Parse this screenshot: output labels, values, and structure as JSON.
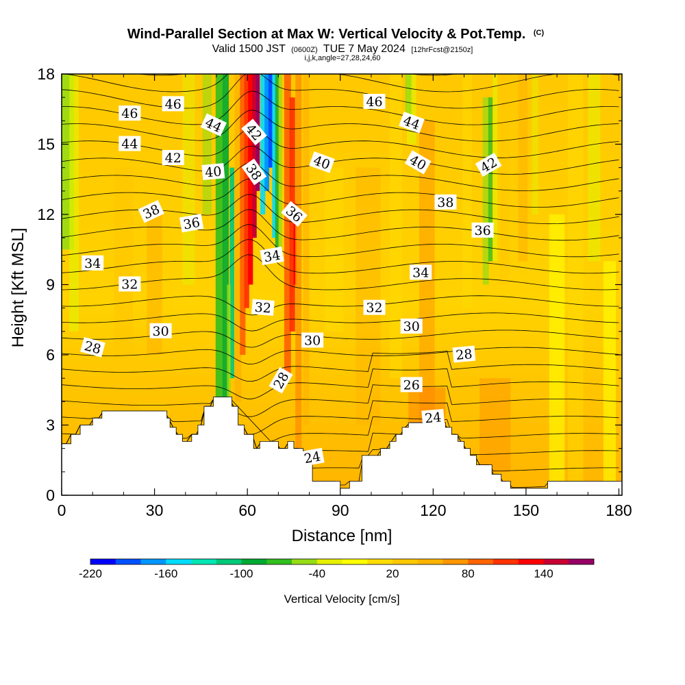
{
  "chart_data": {
    "type": "heatmap",
    "title": "Wind-Parallel Section at Max W: Vertical Velocity & Pot.Temp.",
    "title_mark": "(C)",
    "subtitle_main": "Valid 1500 JST",
    "subtitle_utc": "(0600Z)",
    "subtitle_date": "TUE 7 May 2024",
    "subtitle_fcst": "[12hrFcst@2150z]",
    "subtitle_params": "i,j,k,angle=27,28,24,60",
    "xlabel": "Distance [nm]",
    "ylabel": "Height [Kft MSL]",
    "xlim": [
      0,
      181
    ],
    "ylim": [
      0,
      18
    ],
    "x_ticks": [
      0,
      30,
      60,
      90,
      120,
      150,
      180
    ],
    "y_ticks": [
      0,
      3,
      6,
      9,
      12,
      15,
      18
    ],
    "x_tick_labels": [
      "0",
      "30",
      "60",
      "90",
      "120",
      "150",
      "180"
    ],
    "y_tick_labels": [
      "0",
      "3",
      "6",
      "9",
      "12",
      "15",
      "18"
    ],
    "colorbar": {
      "label": "Vertical Velocity [cm/s]",
      "min": -220,
      "max": 180,
      "step": 20,
      "colors": [
        "#0000ff",
        "#0050ff",
        "#0096ff",
        "#00dcff",
        "#00e6b4",
        "#00c878",
        "#00aa32",
        "#32be1e",
        "#96dc14",
        "#e6f000",
        "#ffff00",
        "#ffdc00",
        "#ffc800",
        "#ffb400",
        "#ff9600",
        "#ff6400",
        "#ff3200",
        "#ff0000",
        "#c80032",
        "#960064"
      ],
      "tick_values": [
        -220,
        -160,
        -100,
        -40,
        20,
        80,
        140
      ],
      "tick_labels": [
        "-220",
        "-160",
        "-100",
        "-40",
        "20",
        "80",
        "140"
      ]
    },
    "terrain": [
      [
        0,
        2.2
      ],
      [
        3,
        2.2
      ],
      [
        3,
        2.6
      ],
      [
        6,
        2.6
      ],
      [
        6,
        3.0
      ],
      [
        10,
        3.0
      ],
      [
        10,
        3.3
      ],
      [
        13,
        3.3
      ],
      [
        13,
        3.6
      ],
      [
        34,
        3.6
      ],
      [
        34,
        3.3
      ],
      [
        35,
        3.3
      ],
      [
        35,
        2.9
      ],
      [
        37,
        2.9
      ],
      [
        37,
        2.6
      ],
      [
        39,
        2.6
      ],
      [
        39,
        2.3
      ],
      [
        42,
        2.3
      ],
      [
        42,
        2.6
      ],
      [
        44,
        2.6
      ],
      [
        44,
        3.0
      ],
      [
        46,
        3.0
      ],
      [
        46,
        3.8
      ],
      [
        49,
        3.8
      ],
      [
        49,
        4.2
      ],
      [
        55,
        4.2
      ],
      [
        55,
        3.8
      ],
      [
        57,
        3.8
      ],
      [
        57,
        3.0
      ],
      [
        59,
        3.0
      ],
      [
        59,
        2.6
      ],
      [
        62,
        2.6
      ],
      [
        62,
        2.0
      ],
      [
        64,
        2.0
      ],
      [
        64,
        2.3
      ],
      [
        70,
        2.3
      ],
      [
        70,
        2.0
      ],
      [
        73,
        2.0
      ],
      [
        73,
        2.3
      ],
      [
        75,
        2.3
      ],
      [
        75,
        2.0
      ],
      [
        78,
        2.0
      ],
      [
        78,
        1.7
      ],
      [
        81,
        1.7
      ],
      [
        81,
        0.6
      ],
      [
        90,
        0.6
      ],
      [
        90,
        0.3
      ],
      [
        93,
        0.3
      ],
      [
        93,
        0.6
      ],
      [
        97,
        0.6
      ],
      [
        97,
        1.7
      ],
      [
        103,
        1.7
      ],
      [
        103,
        2.0
      ],
      [
        106,
        2.0
      ],
      [
        106,
        2.3
      ],
      [
        108,
        2.3
      ],
      [
        108,
        2.6
      ],
      [
        110,
        2.6
      ],
      [
        110,
        2.9
      ],
      [
        112,
        2.9
      ],
      [
        112,
        3.1
      ],
      [
        124,
        3.1
      ],
      [
        124,
        2.9
      ],
      [
        126,
        2.9
      ],
      [
        126,
        2.6
      ],
      [
        128,
        2.6
      ],
      [
        128,
        2.3
      ],
      [
        130,
        2.3
      ],
      [
        130,
        2.0
      ],
      [
        132,
        2.0
      ],
      [
        132,
        1.7
      ],
      [
        134,
        1.7
      ],
      [
        134,
        1.3
      ],
      [
        139,
        1.3
      ],
      [
        139,
        0.9
      ],
      [
        142,
        0.9
      ],
      [
        142,
        0.6
      ],
      [
        145,
        0.6
      ],
      [
        145,
        0.3
      ],
      [
        157,
        0.3
      ],
      [
        157,
        0.6
      ],
      [
        181,
        0.6
      ]
    ],
    "theta_contours": [
      {
        "label": "24",
        "text_x": 81,
        "text_y": 1.6,
        "angle": -10
      },
      {
        "label": "24",
        "text_x": 120,
        "text_y": 3.3,
        "angle": -5
      },
      {
        "label": "26",
        "text_x": 113,
        "text_y": 4.7,
        "angle": 0
      },
      {
        "label": "28",
        "text_x": 10,
        "text_y": 6.3,
        "angle": 15
      },
      {
        "label": "28",
        "text_x": 71,
        "text_y": 4.9,
        "angle": -60
      },
      {
        "label": "28",
        "text_x": 130,
        "text_y": 6.0,
        "angle": -5
      },
      {
        "label": "30",
        "text_x": 32,
        "text_y": 7.0,
        "angle": 0
      },
      {
        "label": "30",
        "text_x": 81,
        "text_y": 6.6,
        "angle": 0
      },
      {
        "label": "30",
        "text_x": 113,
        "text_y": 7.2,
        "angle": 0
      },
      {
        "label": "32",
        "text_x": 22,
        "text_y": 9.0,
        "angle": 0
      },
      {
        "label": "32",
        "text_x": 65,
        "text_y": 8.0,
        "angle": 5
      },
      {
        "label": "32",
        "text_x": 101,
        "text_y": 8.0,
        "angle": 0
      },
      {
        "label": "34",
        "text_x": 10,
        "text_y": 9.9,
        "angle": 0
      },
      {
        "label": "34",
        "text_x": 68,
        "text_y": 10.2,
        "angle": -10
      },
      {
        "label": "34",
        "text_x": 116,
        "text_y": 9.5,
        "angle": 0
      },
      {
        "label": "36",
        "text_x": 42,
        "text_y": 11.6,
        "angle": -10
      },
      {
        "label": "36",
        "text_x": 75,
        "text_y": 12.0,
        "angle": 40
      },
      {
        "label": "36",
        "text_x": 136,
        "text_y": 11.3,
        "angle": 0
      },
      {
        "label": "38",
        "text_x": 29,
        "text_y": 12.1,
        "angle": -25
      },
      {
        "label": "38",
        "text_x": 62,
        "text_y": 13.8,
        "angle": 55
      },
      {
        "label": "38",
        "text_x": 124,
        "text_y": 12.5,
        "angle": 0
      },
      {
        "label": "40",
        "text_x": 49,
        "text_y": 13.8,
        "angle": -5
      },
      {
        "label": "40",
        "text_x": 84,
        "text_y": 14.2,
        "angle": 20
      },
      {
        "label": "40",
        "text_x": 115,
        "text_y": 14.2,
        "angle": 30
      },
      {
        "label": "42",
        "text_x": 36,
        "text_y": 14.4,
        "angle": 0
      },
      {
        "label": "42",
        "text_x": 62,
        "text_y": 15.5,
        "angle": 50
      },
      {
        "label": "42",
        "text_x": 138,
        "text_y": 14.1,
        "angle": -30
      },
      {
        "label": "44",
        "text_x": 22,
        "text_y": 15.0,
        "angle": 0
      },
      {
        "label": "44",
        "text_x": 49,
        "text_y": 15.8,
        "angle": 25
      },
      {
        "label": "44",
        "text_x": 113,
        "text_y": 15.9,
        "angle": 20
      },
      {
        "label": "46",
        "text_x": 22,
        "text_y": 16.3,
        "angle": 0
      },
      {
        "label": "46",
        "text_x": 36,
        "text_y": 16.7,
        "angle": 0
      },
      {
        "label": "46",
        "text_x": 101,
        "text_y": 16.8,
        "angle": 0
      }
    ]
  }
}
